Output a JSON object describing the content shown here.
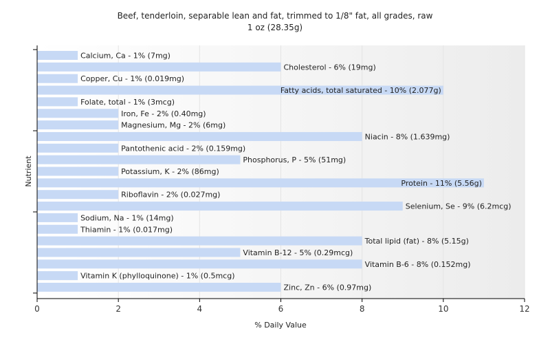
{
  "chart_data": {
    "type": "bar",
    "orientation": "horizontal",
    "title": "Beef, tenderloin, separable lean and fat, trimmed to 1/8\" fat, all grades, raw",
    "subtitle": "1 oz (28.35g)",
    "xlabel": "% Daily Value",
    "ylabel": "Nutrient",
    "xlim": [
      0,
      12
    ],
    "xticks": [
      0,
      2,
      4,
      6,
      8,
      10,
      12
    ],
    "grid": "vertical",
    "bar_color": "#c7d9f5",
    "categories": [
      "Calcium, Ca",
      "Cholesterol",
      "Copper, Cu",
      "Fatty acids, total saturated",
      "Folate, total",
      "Iron, Fe",
      "Magnesium, Mg",
      "Niacin",
      "Pantothenic acid",
      "Phosphorus, P",
      "Potassium, K",
      "Protein",
      "Riboflavin",
      "Selenium, Se",
      "Sodium, Na",
      "Thiamin",
      "Total lipid (fat)",
      "Vitamin B-12",
      "Vitamin B-6",
      "Vitamin K (phylloquinone)",
      "Zinc, Zn"
    ],
    "values": [
      1,
      6,
      1,
      10,
      1,
      2,
      2,
      8,
      2,
      5,
      2,
      11,
      2,
      9,
      1,
      1,
      8,
      5,
      8,
      1,
      6
    ],
    "labels": [
      "Calcium, Ca - 1% (7mg)",
      "Cholesterol - 6% (19mg)",
      "Copper, Cu - 1% (0.019mg)",
      "Fatty acids, total saturated - 10% (2.077g)",
      "Folate, total - 1% (3mcg)",
      "Iron, Fe - 2% (0.40mg)",
      "Magnesium, Mg - 2% (6mg)",
      "Niacin - 8% (1.639mg)",
      "Pantothenic acid - 2% (0.159mg)",
      "Phosphorus, P - 5% (51mg)",
      "Potassium, K - 2% (86mg)",
      "Protein - 11% (5.56g)",
      "Riboflavin - 2% (0.027mg)",
      "Selenium, Se - 9% (6.2mcg)",
      "Sodium, Na - 1% (14mg)",
      "Thiamin - 1% (0.017mg)",
      "Total lipid (fat) - 8% (5.15g)",
      "Vitamin B-12 - 5% (0.29mcg)",
      "Vitamin B-6 - 8% (0.152mg)",
      "Vitamin K (phylloquinone) - 1% (0.5mcg)",
      "Zinc, Zn - 6% (0.97mg)"
    ]
  }
}
